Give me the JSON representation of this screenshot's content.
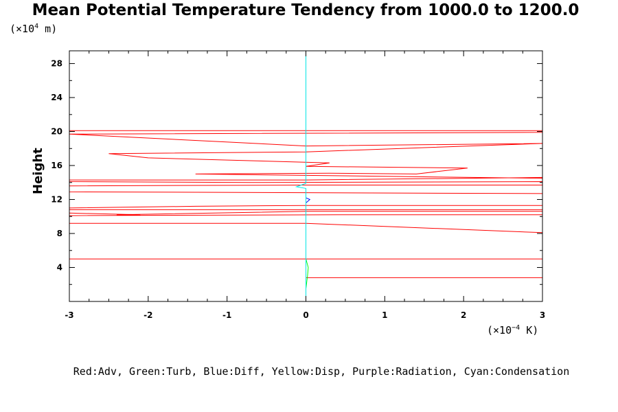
{
  "chart": {
    "title": "Mean Potential Temperature Tendency from 1000.0 to 1200.0",
    "y_unit": {
      "prefix": "(×10",
      "exp": "4",
      "suffix": " m)"
    },
    "x_unit": {
      "prefix": "(×10",
      "exp": "−4",
      "suffix": " K)"
    },
    "ylabel": "Height",
    "caption": "Red:Adv, Green:Turb, Blue:Diff, Yellow:Disp, Purple:Radiation, Cyan:Condensation"
  },
  "chart_data": {
    "type": "line",
    "title": "Mean Potential Temperature Tendency from 1000.0 to 1200.0",
    "xlabel": "",
    "ylabel": "Height",
    "x_units": "×10^-4 K",
    "y_units": "×10^4 m",
    "xlim": [
      -3,
      3
    ],
    "ylim": [
      0,
      29.5
    ],
    "x_ticks": [
      -3,
      -2,
      -1,
      0,
      1,
      2,
      3
    ],
    "y_ticks": [
      4,
      8,
      12,
      16,
      20,
      24,
      28
    ],
    "grid": false,
    "colors": {
      "red": "#ff0000",
      "green": "#00ff00",
      "blue": "#0000ff",
      "cyan": "#00e5e5",
      "black": "#000000"
    },
    "series": [
      {
        "name": "Adv",
        "color": "#ff0000",
        "points": [
          [
            0,
            2.8
          ],
          [
            3,
            2.8
          ],
          [
            3,
            5.0
          ],
          [
            0,
            5.0
          ],
          [
            -3,
            5.0
          ],
          [
            -3,
            9.2
          ],
          [
            0,
            9.2
          ],
          [
            3,
            8.1
          ],
          [
            3,
            10.2
          ],
          [
            0.4,
            10.2
          ],
          [
            -3,
            10.1
          ],
          [
            -3,
            10.4
          ],
          [
            -2.1,
            10.2
          ],
          [
            -2.4,
            10.2
          ],
          [
            0,
            10.6
          ],
          [
            3,
            10.6
          ],
          [
            3,
            10.8
          ],
          [
            0,
            10.8
          ],
          [
            -3,
            10.8
          ],
          [
            -3,
            11.0
          ],
          [
            -1.4,
            11.2
          ],
          [
            0,
            11.3
          ],
          [
            3,
            11.3
          ],
          [
            3,
            12.7
          ],
          [
            0,
            12.8
          ],
          [
            -3,
            12.9
          ],
          [
            -3,
            13.6
          ],
          [
            0,
            13.7
          ],
          [
            3,
            13.7
          ],
          [
            3,
            14.1
          ],
          [
            -0.7,
            14.0
          ],
          [
            -3,
            14.1
          ],
          [
            -3,
            14.3
          ],
          [
            0,
            14.3
          ],
          [
            3,
            14.6
          ],
          [
            3,
            14.5
          ],
          [
            -1.4,
            15.0
          ],
          [
            0.3,
            15.1
          ],
          [
            1.4,
            15.0
          ],
          [
            2.05,
            15.7
          ],
          [
            0,
            15.9
          ],
          [
            0.3,
            16.3
          ],
          [
            -2.0,
            16.9
          ],
          [
            -2.5,
            17.4
          ],
          [
            0,
            17.6
          ],
          [
            3,
            18.6
          ],
          [
            0,
            18.3
          ],
          [
            -3,
            19.7
          ],
          [
            3,
            19.9
          ],
          [
            3,
            20.1
          ],
          [
            -3,
            20.1
          ]
        ]
      },
      {
        "name": "Turb",
        "color": "#00ff00",
        "points": [
          [
            0,
            1.5
          ],
          [
            0.02,
            3.0
          ],
          [
            0.03,
            4.0
          ],
          [
            0.0,
            5.0
          ]
        ]
      },
      {
        "name": "Diff",
        "color": "#0000ff",
        "points": [
          [
            0,
            11.6
          ],
          [
            0.05,
            12.0
          ],
          [
            0,
            12.2
          ]
        ]
      },
      {
        "name": "Condensation",
        "color": "#00e5e5",
        "points": [
          [
            0,
            0.5
          ],
          [
            0,
            13.3
          ],
          [
            -0.12,
            13.5
          ],
          [
            0,
            13.9
          ],
          [
            0,
            29.3
          ]
        ]
      }
    ]
  }
}
